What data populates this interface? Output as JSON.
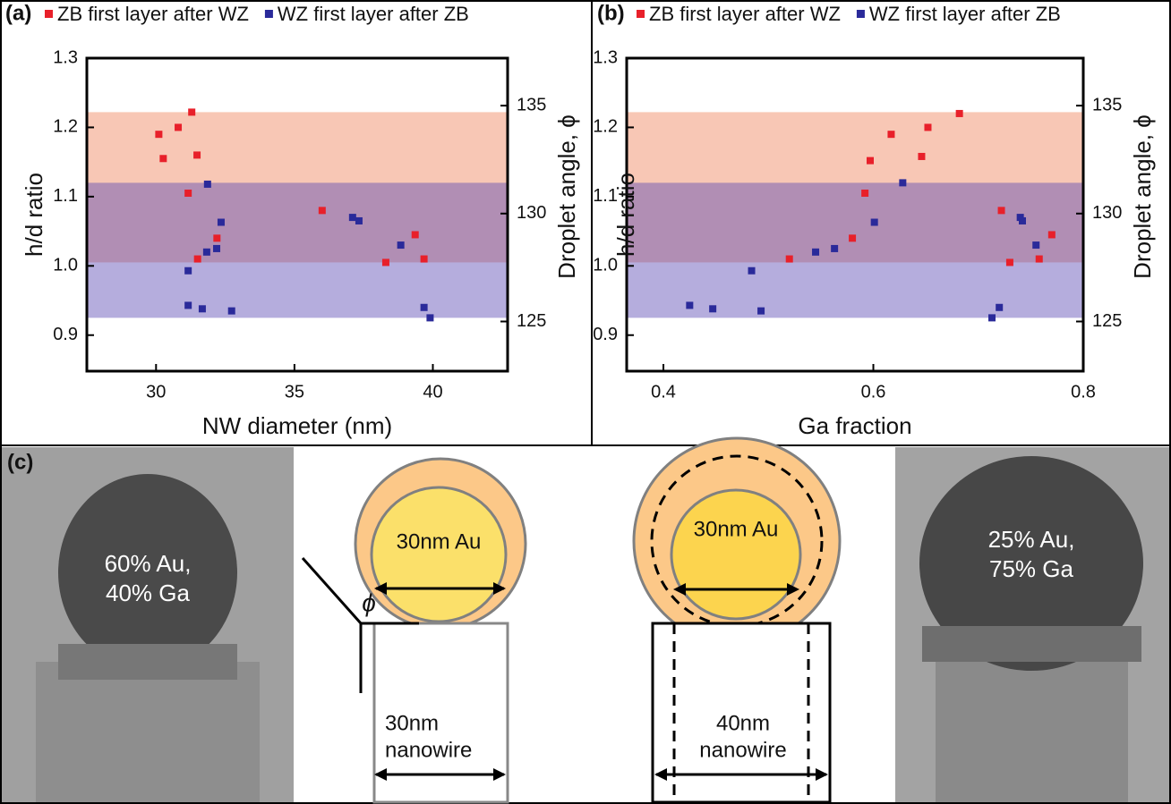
{
  "chart_data": [
    {
      "type": "scatter",
      "panel_label": "(a)",
      "xlabel": "NW diameter (nm)",
      "ylabel": "h/d ratio",
      "y2label": "Droplet angle, ϕ",
      "xlim": [
        27.5,
        42.7
      ],
      "xticks": [
        30,
        35,
        40
      ],
      "ylim": [
        0.848,
        1.3
      ],
      "yticks": [
        0.9,
        {
          "value": 1,
          "label": "1.0"
        },
        1.1,
        1.2,
        1.3
      ],
      "y2lim": [
        122.7,
        137.2
      ],
      "y2ticks": [
        125,
        130,
        135
      ],
      "bands": [
        {
          "range": [
            1.005,
            1.222
          ],
          "color": "#f0825a"
        },
        {
          "range": [
            0.925,
            1.12
          ],
          "color": "#5a4ab4"
        }
      ],
      "series": [
        {
          "name": "ZB first layer after WZ",
          "color": "#e8202a",
          "x": [
            30.1,
            30.26,
            30.8,
            31.29,
            31.48,
            31.16,
            32.2,
            31.5,
            36.0,
            38.3,
            39.36,
            39.68
          ],
          "values": [
            1.19,
            1.155,
            1.2,
            1.222,
            1.16,
            1.105,
            1.04,
            1.01,
            1.08,
            1.005,
            1.045,
            1.01
          ]
        },
        {
          "name": "WZ first layer after ZB",
          "color": "#2a2a9a",
          "x": [
            31.86,
            32.35,
            32.19,
            31.83,
            31.16,
            31.16,
            31.67,
            32.73,
            37.1,
            37.33,
            38.84,
            39.68,
            39.9
          ],
          "values": [
            1.118,
            1.063,
            1.025,
            1.02,
            0.993,
            0.943,
            0.938,
            0.935,
            1.07,
            1.065,
            1.03,
            0.94,
            0.925
          ]
        }
      ]
    },
    {
      "type": "scatter",
      "panel_label": "(b)",
      "xlabel": "Ga fraction",
      "ylabel": "h/d ratio",
      "y2label": "Droplet angle, ϕ",
      "xlim": [
        0.365,
        0.8
      ],
      "xticks": [
        0.4,
        0.6,
        0.8
      ],
      "ylim": [
        0.848,
        1.3
      ],
      "yticks": [
        0.9,
        {
          "value": 1,
          "label": "1.0"
        },
        1.1,
        1.2,
        1.3
      ],
      "y2lim": [
        122.7,
        137.2
      ],
      "y2ticks": [
        125,
        130,
        135
      ],
      "bands": [
        {
          "range": [
            1.005,
            1.222
          ],
          "color": "#f0825a"
        },
        {
          "range": [
            0.925,
            1.12
          ],
          "color": "#5a4ab4"
        }
      ],
      "series": [
        {
          "name": "ZB first layer after WZ",
          "color": "#e8202a",
          "x": [
            0.52,
            0.58,
            0.592,
            0.597,
            0.617,
            0.646,
            0.652,
            0.682,
            0.722,
            0.73,
            0.758,
            0.77
          ],
          "values": [
            1.01,
            1.04,
            1.105,
            1.152,
            1.19,
            1.158,
            1.2,
            1.22,
            1.08,
            1.005,
            1.01,
            1.045
          ]
        },
        {
          "name": "WZ first layer after ZB",
          "color": "#2a2a9a",
          "x": [
            0.425,
            0.447,
            0.484,
            0.493,
            0.545,
            0.563,
            0.601,
            0.628,
            0.713,
            0.72,
            0.74,
            0.742,
            0.755
          ],
          "values": [
            0.943,
            0.938,
            0.993,
            0.935,
            1.02,
            1.025,
            1.063,
            1.12,
            0.925,
            0.94,
            1.07,
            1.065,
            1.03
          ]
        }
      ]
    }
  ],
  "panel_c": {
    "label": "(c)",
    "left_image": [
      "60% Au,",
      "40% Ga"
    ],
    "left_diagram": {
      "droplet": "30nm Au",
      "angle": "ϕ",
      "wire": [
        "30nm",
        "nanowire"
      ]
    },
    "right_diagram": {
      "droplet": "30nm Au",
      "wire": [
        "40nm",
        "nanowire"
      ]
    },
    "right_image": [
      "25% Au,",
      "75% Ga"
    ]
  }
}
